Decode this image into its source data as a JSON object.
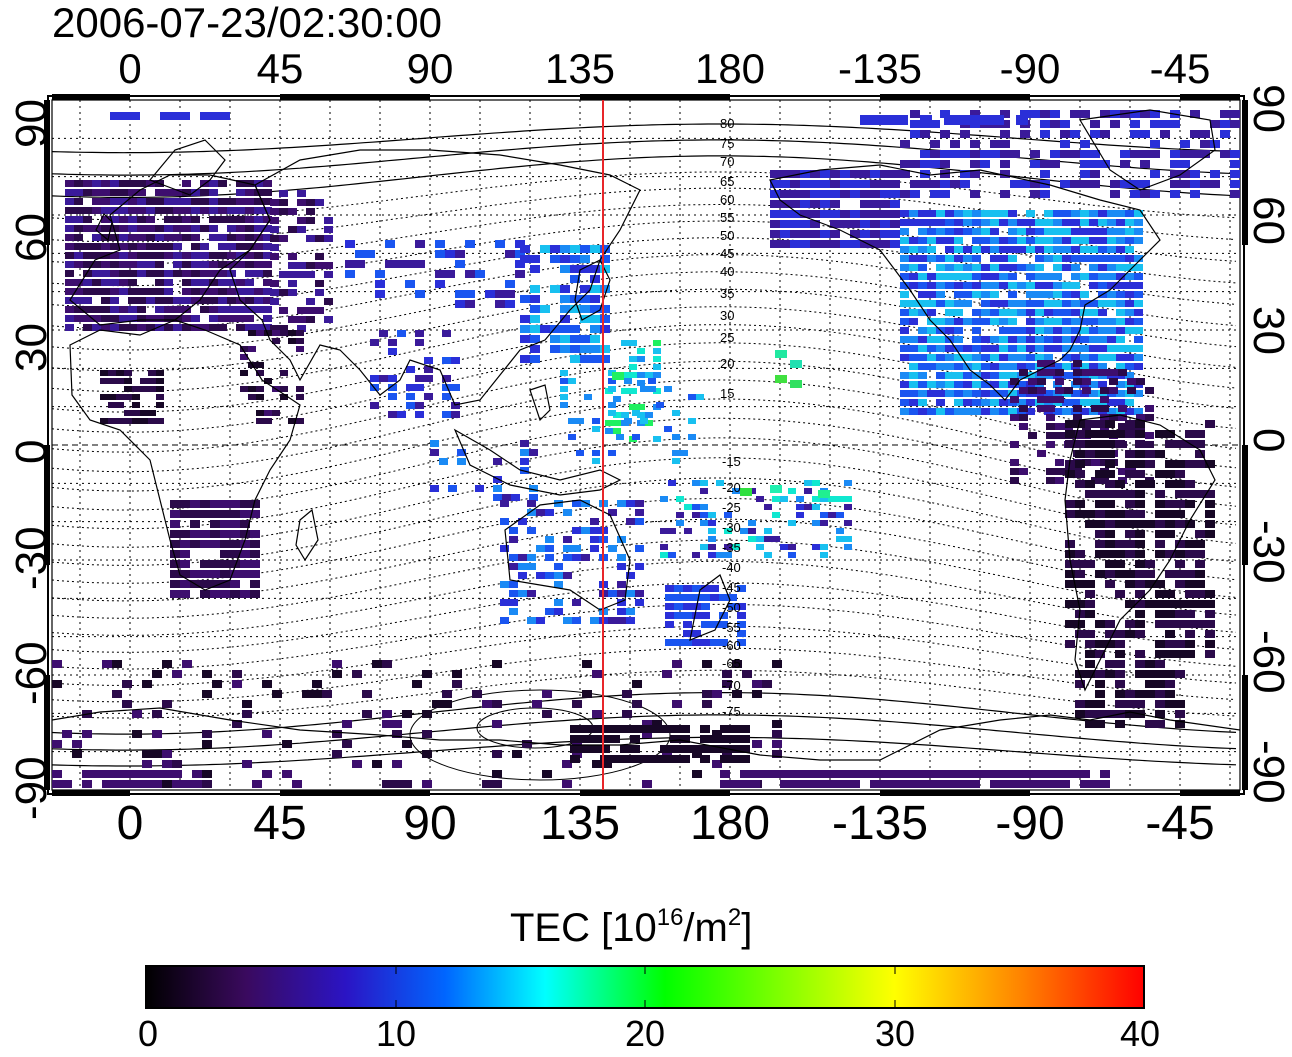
{
  "title": "2006-07-23/02:30:00",
  "axes": {
    "x_ticks_top": [
      "0",
      "45",
      "90",
      "135",
      "180",
      "-135",
      "-90",
      "-45"
    ],
    "x_ticks_bottom": [
      "0",
      "45",
      "90",
      "135",
      "180",
      "-135",
      "-90",
      "-45"
    ],
    "y_ticks_left": [
      "90",
      "60",
      "30",
      "0",
      "-30",
      "-60",
      "-90"
    ],
    "y_ticks_right": [
      "90",
      "60",
      "30",
      "0",
      "-30",
      "-60",
      "-90"
    ]
  },
  "colorbar": {
    "title_main": "TEC  [10",
    "title_exp1": "16",
    "title_mid": "/m",
    "title_exp2": "2",
    "title_end": "]",
    "ticks": [
      "0",
      "10",
      "20",
      "30",
      "40"
    ],
    "range": [
      0,
      40
    ],
    "colors": [
      "#000000",
      "#3a0a5e",
      "#2b14c4",
      "#0066ff",
      "#00ffff",
      "#00ff00",
      "#ffff00",
      "#ff8000",
      "#ff0000"
    ]
  },
  "map": {
    "meridian_marker_longitude": 142,
    "meridian_marker_color": "#e8262a",
    "contour_labels_north": [
      "80",
      "75",
      "70",
      "65",
      "60",
      "55",
      "50",
      "45",
      "40",
      "35",
      "30",
      "25",
      "20",
      "15"
    ],
    "contour_labels_south": [
      "-15",
      "-20",
      "-25",
      "-30",
      "-35",
      "-40",
      "-45",
      "-50",
      "-55",
      "-60",
      "-65",
      "-70",
      "-75"
    ]
  }
}
